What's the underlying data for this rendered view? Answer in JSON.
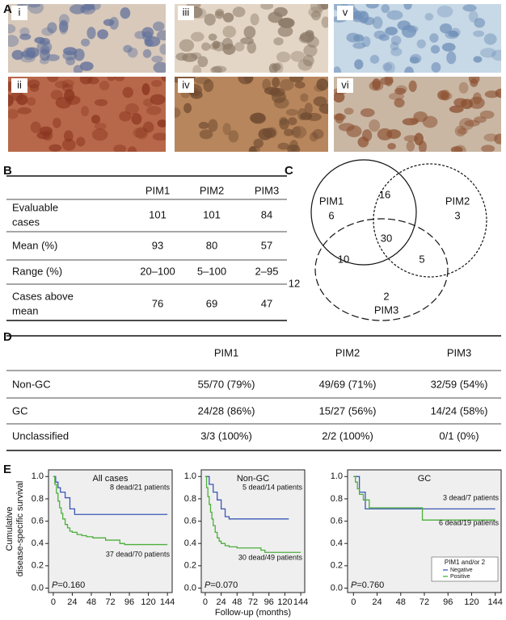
{
  "panel_labels": [
    "A",
    "B",
    "C",
    "D",
    "E"
  ],
  "panel_a": {
    "image_labels": [
      "i",
      "ii",
      "iii",
      "iv",
      "v",
      "vi"
    ]
  },
  "table_b": {
    "header": [
      "PIM1",
      "PIM2",
      "PIM3"
    ],
    "rows": [
      {
        "label": [
          "Evaluable",
          "cases"
        ],
        "values": [
          "101",
          "101",
          "84"
        ]
      },
      {
        "label": [
          "Mean (%)"
        ],
        "values": [
          "93",
          "80",
          "57"
        ]
      },
      {
        "label": [
          "Range (%)"
        ],
        "values": [
          "20–100",
          "5–100",
          "2–95"
        ]
      },
      {
        "label": [
          "Cases above",
          "mean"
        ],
        "values": [
          "76",
          "69",
          "47"
        ]
      }
    ]
  },
  "venn_c": {
    "sets": [
      "PIM1",
      "PIM2",
      "PIM3"
    ],
    "only_pim1": "6",
    "only_pim2": "3",
    "only_pim3": "2",
    "pim1_pim2": "16",
    "all_three": "30",
    "pim1_pim3": "10",
    "pim2_pim3": "5",
    "none": "12"
  },
  "table_d": {
    "header": [
      "PIM1",
      "PIM2",
      "PIM3"
    ],
    "rows": [
      {
        "label": "Non-GC",
        "values": [
          "55/70 (79%)",
          "49/69 (71%)",
          "32/59 (54%)"
        ]
      },
      {
        "label": "GC",
        "values": [
          "24/28 (86%)",
          "15/27 (56%)",
          "14/24 (58%)"
        ]
      },
      {
        "label": "Unclassified",
        "values": [
          "3/3 (100%)",
          "2/2 (100%)",
          "0/1 (0%)"
        ]
      }
    ]
  },
  "panel_e": {
    "ylabel": [
      "Cumulative",
      "disease-specific survival"
    ],
    "xlabel": "Follow-up (months)"
  },
  "chart_data": [
    {
      "type": "line",
      "drawstyle": "steps-post",
      "title": "All cases",
      "xlim": [
        -6,
        150
      ],
      "ylim": [
        -0.04,
        1.06
      ],
      "xticks": [
        0,
        24,
        48,
        72,
        96,
        120,
        144
      ],
      "yticks": [
        {
          "value": 0,
          "label": "0.0"
        },
        0.2,
        0.4,
        0.6,
        0.8,
        {
          "value": 1,
          "label": "1.0"
        }
      ],
      "series": [
        {
          "color": "#3a57b5",
          "x": [
            0,
            3,
            6,
            9,
            15,
            21,
            27,
            144
          ],
          "values": [
            1,
            0.95,
            0.9,
            0.86,
            0.81,
            0.71,
            0.66,
            0.66
          ]
        },
        {
          "color": "#4caf3c",
          "x": [
            0,
            2,
            4,
            6,
            8,
            10,
            12,
            15,
            18,
            21,
            24,
            30,
            36,
            42,
            50,
            60,
            66,
            84,
            90,
            144
          ],
          "values": [
            1,
            0.93,
            0.85,
            0.78,
            0.72,
            0.67,
            0.62,
            0.57,
            0.54,
            0.51,
            0.5,
            0.48,
            0.47,
            0.46,
            0.45,
            0.45,
            0.43,
            0.4,
            0.39,
            0.39
          ]
        }
      ],
      "annotations": [
        "8 dead/21 patients",
        "37 dead/70 patients"
      ],
      "p_symbol": "P",
      "p_value": "=0.160"
    },
    {
      "type": "line",
      "drawstyle": "steps-post",
      "title": "Non-GC",
      "xlim": [
        -6,
        150
      ],
      "ylim": [
        -0.04,
        1.06
      ],
      "xticks": [
        0,
        24,
        48,
        72,
        96,
        120,
        144
      ],
      "yticks": [
        {
          "value": 0,
          "label": "0.0"
        },
        0.2,
        0.4,
        0.6,
        0.8,
        {
          "value": 1,
          "label": "1.0"
        }
      ],
      "series": [
        {
          "color": "#3a57b5",
          "x": [
            0,
            6,
            12,
            18,
            24,
            30,
            36,
            126
          ],
          "values": [
            1,
            0.93,
            0.86,
            0.79,
            0.71,
            0.64,
            0.62,
            0.62
          ]
        },
        {
          "color": "#4caf3c",
          "x": [
            0,
            2,
            4,
            6,
            8,
            10,
            12,
            15,
            18,
            21,
            24,
            30,
            36,
            48,
            60,
            84,
            90,
            144
          ],
          "values": [
            1,
            0.9,
            0.82,
            0.75,
            0.68,
            0.62,
            0.56,
            0.5,
            0.45,
            0.42,
            0.4,
            0.38,
            0.37,
            0.36,
            0.36,
            0.34,
            0.32,
            0.32
          ]
        }
      ],
      "annotations": [
        "5 dead/14 patients",
        "30 dead/49 patients"
      ],
      "p_symbol": "P",
      "p_value": "=0.070"
    },
    {
      "type": "line",
      "drawstyle": "steps-post",
      "title": "GC",
      "xlim": [
        -6,
        150
      ],
      "ylim": [
        -0.04,
        1.06
      ],
      "xticks": [
        0,
        24,
        48,
        72,
        96,
        120,
        144
      ],
      "yticks": [
        {
          "value": 0,
          "label": "0.0"
        },
        0.2,
        0.4,
        0.6,
        0.8,
        {
          "value": 1,
          "label": "1.0"
        }
      ],
      "legend_title": "PIM1 and/or 2",
      "legend": "lower right",
      "series": [
        {
          "name": "Negative",
          "color": "#3a57b5",
          "x": [
            0,
            6,
            12,
            144
          ],
          "values": [
            1,
            0.86,
            0.71,
            0.71
          ]
        },
        {
          "name": "Positive",
          "color": "#4caf3c",
          "x": [
            0,
            2,
            4,
            6,
            10,
            16,
            60,
            70,
            144
          ],
          "values": [
            1,
            0.95,
            0.89,
            0.84,
            0.79,
            0.72,
            0.72,
            0.61,
            0.61
          ]
        }
      ],
      "annotations": [
        "3 dead/7 patients",
        "6 dead/19 patients"
      ],
      "p_symbol": "P",
      "p_value": "=0.760"
    }
  ]
}
